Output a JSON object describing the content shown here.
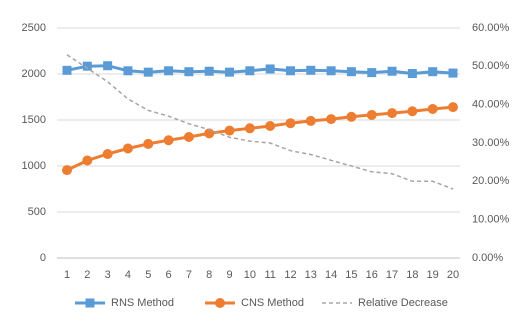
{
  "chart_data": {
    "type": "line",
    "x": [
      1,
      2,
      3,
      4,
      5,
      6,
      7,
      8,
      9,
      10,
      11,
      12,
      13,
      14,
      15,
      16,
      17,
      18,
      19,
      20
    ],
    "y_left": {
      "range": [
        0,
        2500
      ],
      "ticks": [
        0,
        500,
        1000,
        1500,
        2000,
        2500
      ],
      "tick_labels": [
        "0",
        "500",
        "1000",
        "1500",
        "2000",
        "2500"
      ]
    },
    "y_right": {
      "range": [
        0,
        60
      ],
      "unit": "%",
      "ticks": [
        0,
        10,
        20,
        30,
        40,
        50,
        60
      ],
      "tick_labels": [
        "0.00%",
        "10.00%",
        "20.00%",
        "30.00%",
        "40.00%",
        "50.00%",
        "60.00%"
      ]
    },
    "grid": "horizontal",
    "legend_position": "bottom",
    "series": [
      {
        "name": "RNS Method",
        "axis": "left",
        "style": "solid-square",
        "color": "#5b9bd5",
        "values": [
          2040,
          2085,
          2090,
          2035,
          2020,
          2035,
          2025,
          2030,
          2020,
          2035,
          2055,
          2035,
          2040,
          2035,
          2025,
          2015,
          2030,
          2005,
          2025,
          2010
        ]
      },
      {
        "name": "CNS Method",
        "axis": "left",
        "style": "solid-circle",
        "color": "#ed7d31",
        "values": [
          955,
          1060,
          1130,
          1190,
          1240,
          1280,
          1315,
          1355,
          1385,
          1410,
          1435,
          1465,
          1490,
          1510,
          1535,
          1555,
          1575,
          1595,
          1620,
          1640
        ]
      },
      {
        "name": "Relative Decrease",
        "axis": "right",
        "style": "dashed",
        "color": "#a5a5a5",
        "values": [
          53,
          49.5,
          46,
          41.5,
          38.5,
          37,
          35,
          33.5,
          31.5,
          30.5,
          30,
          28,
          27,
          25.5,
          24,
          22.5,
          22,
          20,
          20,
          18
        ]
      }
    ]
  }
}
